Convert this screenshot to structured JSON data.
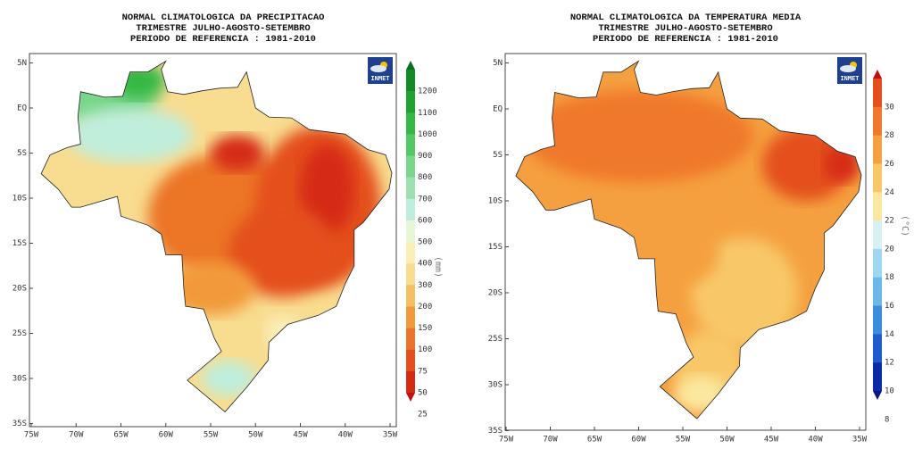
{
  "maps": [
    {
      "title": [
        "NORMAL CLIMATOLOGICA DA PRECIPITACAO",
        "TRIMESTRE JULHO-AGOSTO-SETEMBRO",
        "PERIODO DE REFERENCIA : 1981-2010"
      ],
      "lat_labels": [
        "5N",
        "EQ",
        "5S",
        "10S",
        "15S",
        "20S",
        "25S",
        "30S",
        "35S"
      ],
      "lon_labels": [
        "75W",
        "70W",
        "65W",
        "60W",
        "55W",
        "50W",
        "45W",
        "40W",
        "35W"
      ],
      "logo": "INMET",
      "colorbar": {
        "labels": [
          1200,
          1100,
          1000,
          900,
          800,
          700,
          600,
          500,
          400,
          300,
          200,
          150,
          100,
          75,
          50,
          25
        ],
        "unit": "(mm)",
        "colors": [
          "#0a6e1e",
          "#138a25",
          "#1fa22f",
          "#35b844",
          "#55c866",
          "#7ad68a",
          "#9ee0b0",
          "#bfeedc",
          "#e8f6d8",
          "#fbefb8",
          "#f8dc90",
          "#f5c060",
          "#f29a3a",
          "#ec7428",
          "#e44f1c",
          "#d52a12",
          "#c01010"
        ]
      }
    },
    {
      "title": [
        "NORMAL CLIMATOLOGICA DA TEMPERATURA MEDIA",
        "TRIMESTRE JULHO-AGOSTO-SETEMBRO",
        "PERIODO DE REFERENCIA : 1981-2010"
      ],
      "lat_labels": [
        "5N",
        "EQ",
        "5S",
        "10S",
        "15S",
        "20S",
        "25S",
        "30S",
        "35S"
      ],
      "lon_labels": [
        "75W",
        "70W",
        "65W",
        "60W",
        "55W",
        "50W",
        "45W",
        "40W",
        "35W"
      ],
      "logo": "INMET",
      "colorbar": {
        "labels": [
          30,
          28,
          26,
          24,
          22,
          20,
          18,
          16,
          14,
          12,
          10,
          8
        ],
        "unit": "(°C)",
        "colors": [
          "#c01010",
          "#e44f1c",
          "#f0782a",
          "#f5a040",
          "#f8c868",
          "#fbe8a0",
          "#d8f0f0",
          "#9fd8ee",
          "#6cb8e8",
          "#3a8cdc",
          "#1e5ccc",
          "#0a2aa8",
          "#061880"
        ]
      }
    }
  ]
}
